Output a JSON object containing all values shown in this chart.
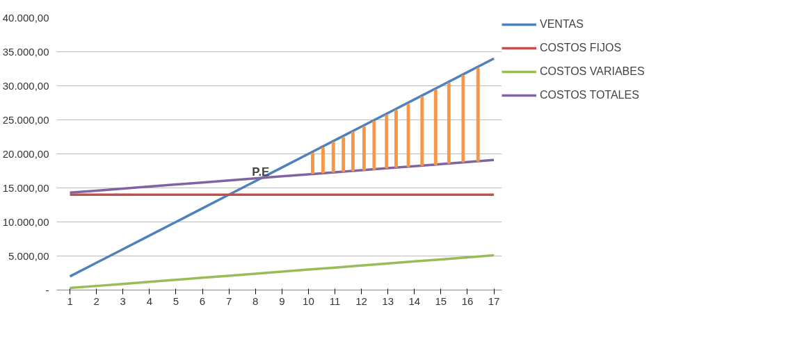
{
  "chart_data": {
    "type": "line",
    "x": [
      1,
      2,
      3,
      4,
      5,
      6,
      7,
      8,
      9,
      10,
      11,
      12,
      13,
      14,
      15,
      16,
      17
    ],
    "series": [
      {
        "name": "VENTAS",
        "color": "#4f81bd",
        "values": [
          2000,
          4000,
          6000,
          8000,
          10000,
          12000,
          14000,
          16000,
          18000,
          20000,
          22000,
          24000,
          26000,
          28000,
          30000,
          32000,
          34000
        ]
      },
      {
        "name": "COSTOS FIJOS",
        "color": "#c0504d",
        "values": [
          14000,
          14000,
          14000,
          14000,
          14000,
          14000,
          14000,
          14000,
          14000,
          14000,
          14000,
          14000,
          14000,
          14000,
          14000,
          14000,
          14000
        ]
      },
      {
        "name": "COSTOS VARIABES",
        "color": "#9bbb59",
        "values": [
          300,
          600,
          900,
          1200,
          1500,
          1800,
          2100,
          2400,
          2700,
          3000,
          3300,
          3600,
          3900,
          4200,
          4500,
          4800,
          5100
        ]
      },
      {
        "name": "COSTOS TOTALES",
        "color": "#8064a2",
        "values": [
          14300,
          14600,
          14900,
          15200,
          15500,
          15800,
          16100,
          16400,
          16700,
          17000,
          17300,
          17600,
          17900,
          18200,
          18500,
          18800,
          19100
        ]
      },
      {
        "type": "bar",
        "color": "#f79646",
        "x": [
          10.16,
          10.55,
          10.94,
          11.32,
          11.68,
          12.1,
          12.48,
          12.95,
          13.31,
          13.77,
          14.29,
          14.8,
          15.3,
          15.84,
          16.4
        ],
        "base": [
          17100,
          17200,
          17300,
          17400,
          17500,
          17600,
          17700,
          17900,
          18000,
          18100,
          18300,
          18400,
          18600,
          18800,
          18900
        ],
        "values": [
          3000,
          3700,
          4400,
          5000,
          5700,
          6400,
          7100,
          7800,
          8400,
          9200,
          10100,
          11000,
          11800,
          12700,
          13700
        ]
      }
    ],
    "annotations": [
      {
        "text": "P.E",
        "x": 8.2,
        "y": 16400
      }
    ],
    "xlim": [
      0.5,
      17.3
    ],
    "xticks": [
      1,
      2,
      3,
      4,
      5,
      6,
      7,
      8,
      9,
      10,
      11,
      12,
      13,
      14,
      15,
      16,
      17
    ],
    "ylim": [
      0,
      40000
    ],
    "yticks": [
      {
        "value": 0,
        "label": "-"
      },
      {
        "value": 5000,
        "label": "5.000,00"
      },
      {
        "value": 10000,
        "label": "10.000,00"
      },
      {
        "value": 15000,
        "label": "15.000,00"
      },
      {
        "value": 20000,
        "label": "20.000,00"
      },
      {
        "value": 25000,
        "label": "25.000,00"
      },
      {
        "value": 30000,
        "label": "30.000,00"
      },
      {
        "value": 35000,
        "label": "35.000,00"
      },
      {
        "value": 40000,
        "label": "40.000,00"
      }
    ],
    "grid": "y",
    "legend": "right",
    "marker": "none",
    "line_style": "solid"
  }
}
